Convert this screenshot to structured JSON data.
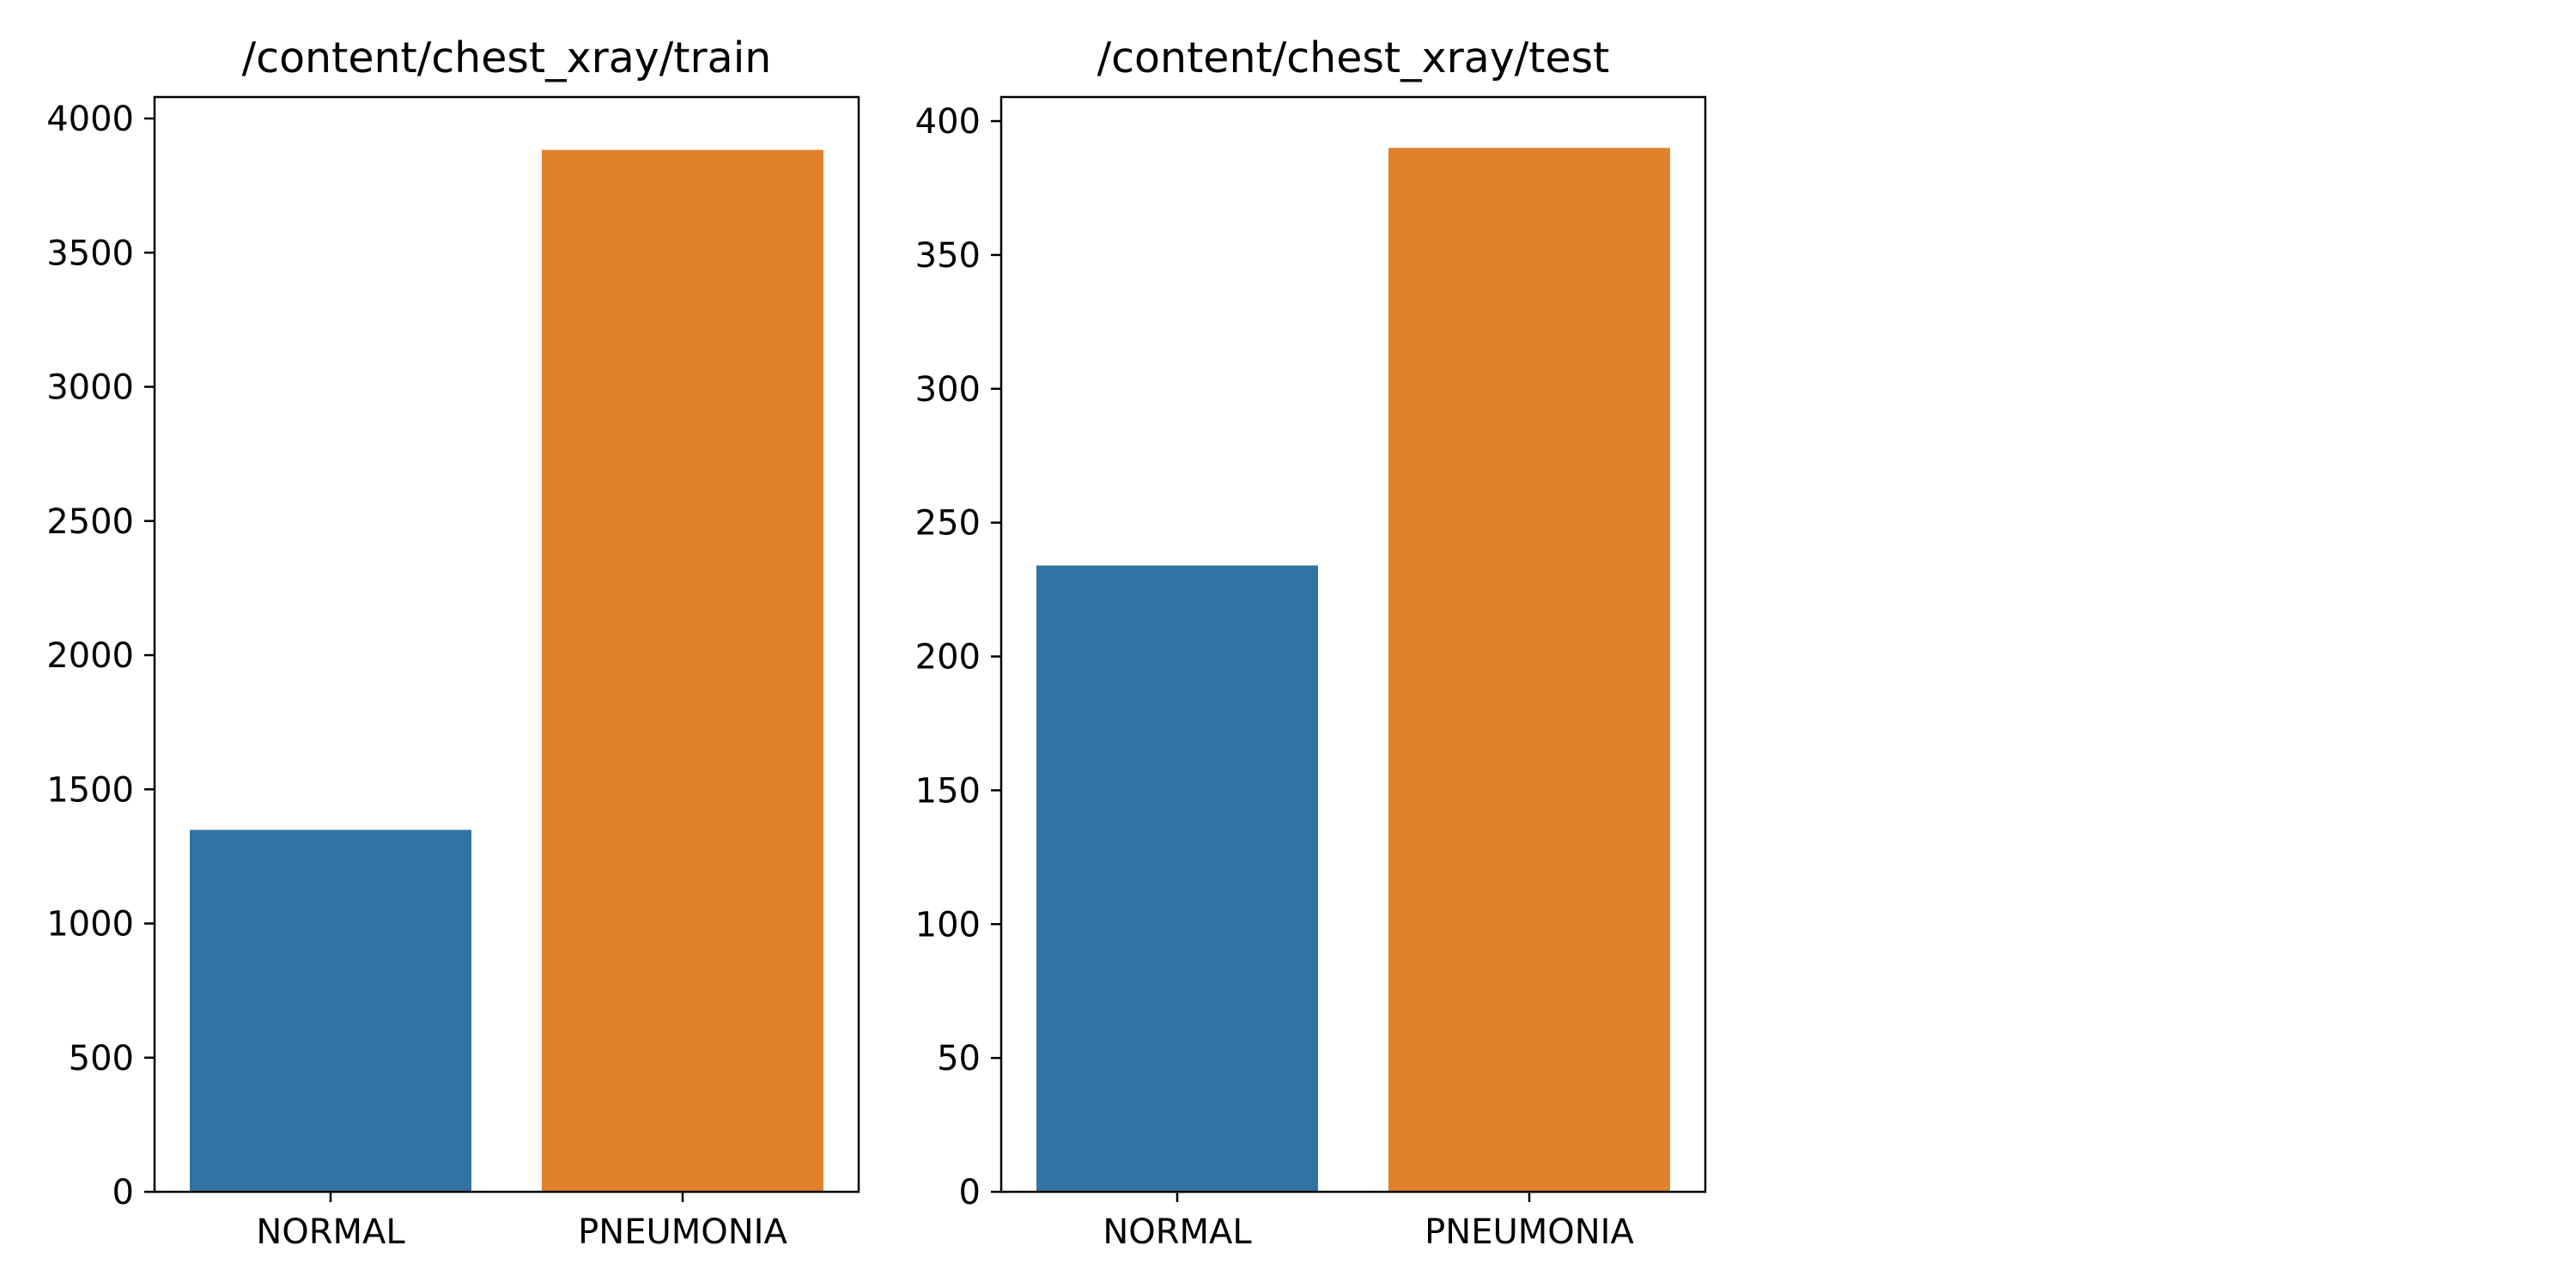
{
  "chart_data": [
    {
      "type": "bar",
      "title": "/content/chest_xray/train",
      "xlabel": "",
      "ylabel": "",
      "categories": [
        "NORMAL",
        "PNEUMONIA"
      ],
      "values": [
        1349,
        3883
      ],
      "ylim": [
        0,
        4080
      ],
      "yticks": [
        0,
        500,
        1000,
        1500,
        2000,
        2500,
        3000,
        3500,
        4000
      ],
      "colors": [
        "#3274a1",
        "#e1812c"
      ],
      "grid": false,
      "legend": "none"
    },
    {
      "type": "bar",
      "title": "/content/chest_xray/test",
      "xlabel": "",
      "ylabel": "",
      "categories": [
        "NORMAL",
        "PNEUMONIA"
      ],
      "values": [
        234,
        390
      ],
      "ylim": [
        0,
        409
      ],
      "yticks": [
        0,
        50,
        100,
        150,
        200,
        250,
        300,
        350,
        400
      ],
      "colors": [
        "#3274a1",
        "#e1812c"
      ],
      "grid": false,
      "legend": "none"
    }
  ]
}
